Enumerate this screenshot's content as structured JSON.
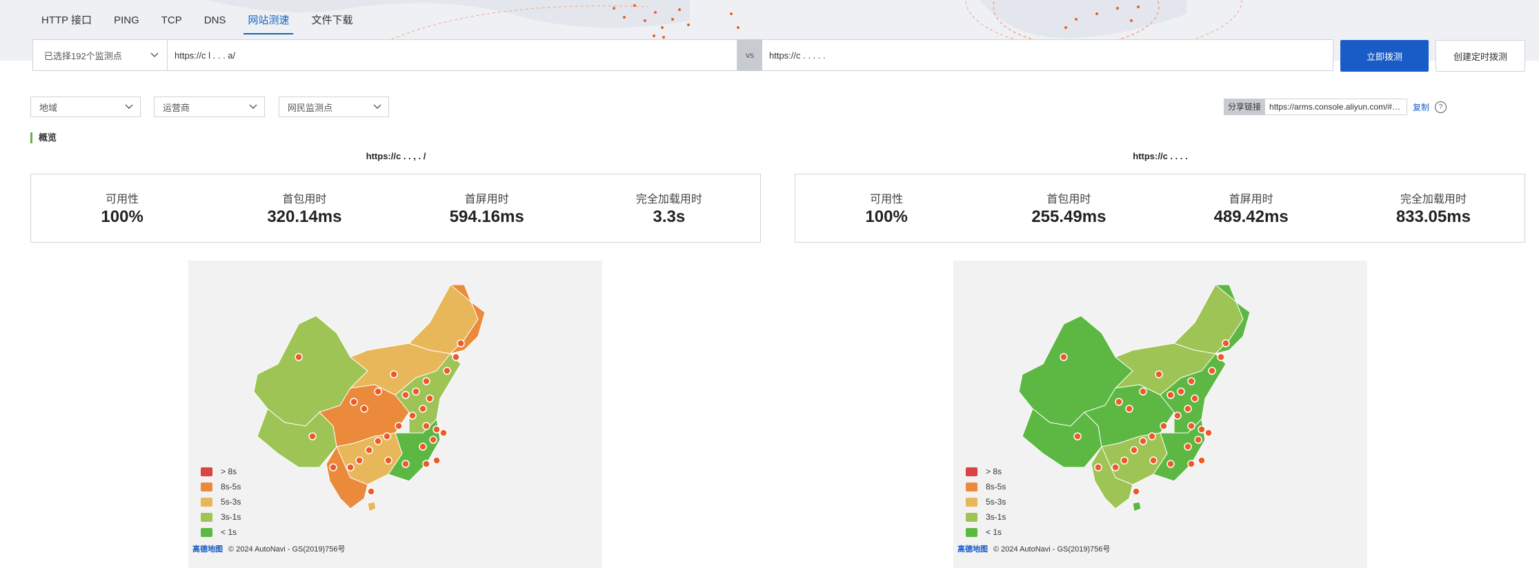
{
  "tabs": [
    {
      "label": "HTTP 接口",
      "active": false
    },
    {
      "label": "PING",
      "active": false
    },
    {
      "label": "TCP",
      "active": false
    },
    {
      "label": "DNS",
      "active": false
    },
    {
      "label": "网站测速",
      "active": true
    },
    {
      "label": "文件下载",
      "active": false
    }
  ],
  "toolbar": {
    "monitor_select": "已选择192个监测点",
    "url_a": "https://c    l        .  .  . a/",
    "vs_label": "vs",
    "url_b": "https://c   .   .   .   .  .",
    "run_button": "立即拨测",
    "schedule_button": "创建定时拨测"
  },
  "filters": {
    "region": "地域",
    "isp": "运营商",
    "probe": "网民监测点"
  },
  "share": {
    "label": "分享链接",
    "url": "https://arms.console.aliyun.com/#/synthetic/immediate",
    "copy": "复制",
    "help": "?"
  },
  "overview_title": "概览",
  "panels": [
    {
      "url": "https://c   .    .   ,  . /",
      "metrics": [
        {
          "label": "可用性",
          "value": "100%"
        },
        {
          "label": "首包用时",
          "value": "320.14ms"
        },
        {
          "label": "首屏用时",
          "value": "594.16ms"
        },
        {
          "label": "完全加载用时",
          "value": "3.3s"
        }
      ]
    },
    {
      "url": "https://c   .  .  .  .",
      "metrics": [
        {
          "label": "可用性",
          "value": "100%"
        },
        {
          "label": "首包用时",
          "value": "255.49ms"
        },
        {
          "label": "首屏用时",
          "value": "489.42ms"
        },
        {
          "label": "完全加载用时",
          "value": "833.05ms"
        }
      ]
    }
  ],
  "legend": [
    {
      "label": "> 8s",
      "color": "#d94343"
    },
    {
      "label": "8s-5s",
      "color": "#ec8a3c"
    },
    {
      "label": "5s-3s",
      "color": "#e8b75a"
    },
    {
      "label": "3s-1s",
      "color": "#9dc455"
    },
    {
      "label": "< 1s",
      "color": "#5cb843"
    }
  ],
  "map_credit": {
    "logo": "高德地图",
    "text": "© 2024 AutoNavi - GS(2019)756号"
  },
  "colors": {
    "accent": "#1a5cc7",
    "section_bar": "#6ab04c",
    "probe_dot": "#ee5a24"
  }
}
